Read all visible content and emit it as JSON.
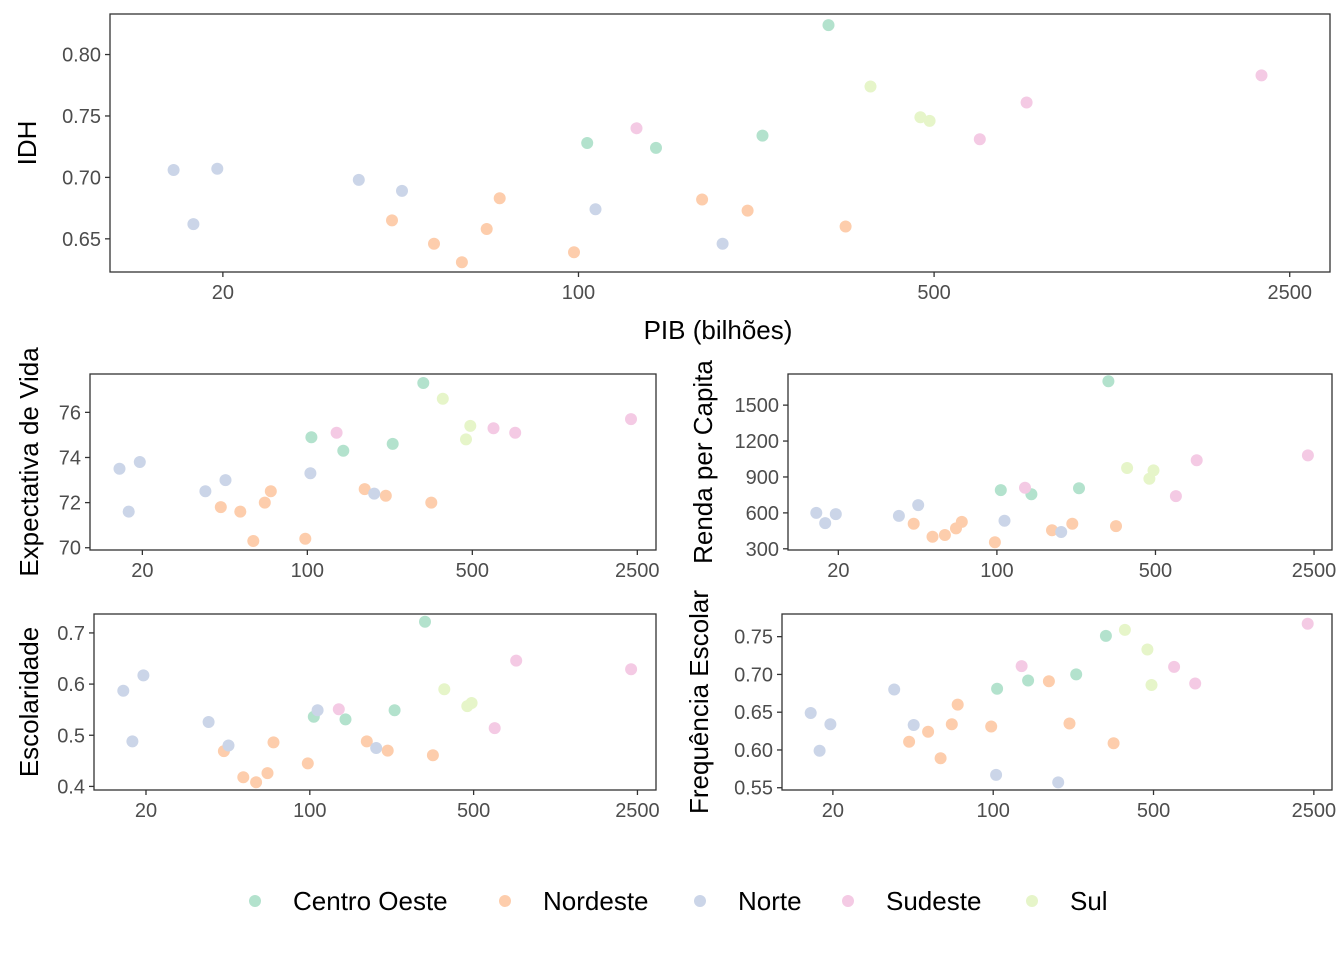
{
  "colors": {
    "Centro Oeste": "#b3e2cd",
    "Nordeste": "#fdcdac",
    "Norte": "#cbd5e8",
    "Sudeste": "#f4cae4",
    "Sul": "#e6f5c9"
  },
  "legend": {
    "entries": [
      "Centro Oeste",
      "Nordeste",
      "Norte",
      "Sudeste",
      "Sul"
    ]
  },
  "chart_data": [
    {
      "id": "idh",
      "type": "scatter",
      "title": "",
      "xlabel": "PIB (bilhões)",
      "ylabel": "IDH",
      "xscale": "log",
      "xlim": [
        12,
        3000
      ],
      "ylim": [
        0.623,
        0.833
      ],
      "xticks": [
        20,
        100,
        500,
        2500
      ],
      "xtick_labels": [
        "20",
        "100",
        "500",
        "2500"
      ],
      "yticks": [
        0.65,
        0.7,
        0.75,
        0.8
      ],
      "ytick_labels": [
        "0.65",
        "0.70",
        "0.75",
        "0.80"
      ],
      "grid": false,
      "points": [
        {
          "region": "Centro Oeste",
          "x": 104,
          "y": 0.728
        },
        {
          "region": "Centro Oeste",
          "x": 142,
          "y": 0.724
        },
        {
          "region": "Centro Oeste",
          "x": 230,
          "y": 0.734
        },
        {
          "region": "Centro Oeste",
          "x": 310,
          "y": 0.824
        },
        {
          "region": "Nordeste",
          "x": 43,
          "y": 0.665
        },
        {
          "region": "Nordeste",
          "x": 52,
          "y": 0.646
        },
        {
          "region": "Nordeste",
          "x": 59,
          "y": 0.631
        },
        {
          "region": "Nordeste",
          "x": 66,
          "y": 0.658
        },
        {
          "region": "Nordeste",
          "x": 70,
          "y": 0.683
        },
        {
          "region": "Nordeste",
          "x": 98,
          "y": 0.639
        },
        {
          "region": "Nordeste",
          "x": 175,
          "y": 0.682
        },
        {
          "region": "Nordeste",
          "x": 215,
          "y": 0.673
        },
        {
          "region": "Nordeste",
          "x": 335,
          "y": 0.66
        },
        {
          "region": "Norte",
          "x": 16,
          "y": 0.706
        },
        {
          "region": "Norte",
          "x": 17.5,
          "y": 0.662
        },
        {
          "region": "Norte",
          "x": 19.5,
          "y": 0.707
        },
        {
          "region": "Norte",
          "x": 37,
          "y": 0.698
        },
        {
          "region": "Norte",
          "x": 45,
          "y": 0.689
        },
        {
          "region": "Norte",
          "x": 108,
          "y": 0.674
        },
        {
          "region": "Norte",
          "x": 192,
          "y": 0.646
        },
        {
          "region": "Sudeste",
          "x": 130,
          "y": 0.74
        },
        {
          "region": "Sudeste",
          "x": 615,
          "y": 0.731
        },
        {
          "region": "Sudeste",
          "x": 760,
          "y": 0.761
        },
        {
          "region": "Sudeste",
          "x": 2200,
          "y": 0.783
        },
        {
          "region": "Sul",
          "x": 375,
          "y": 0.774
        },
        {
          "region": "Sul",
          "x": 470,
          "y": 0.749
        },
        {
          "region": "Sul",
          "x": 490,
          "y": 0.746
        }
      ]
    },
    {
      "id": "expectativa",
      "type": "scatter",
      "title": "",
      "xlabel": "",
      "ylabel": "Expectativa de Vida",
      "xscale": "log",
      "xlim": [
        12,
        3000
      ],
      "ylim": [
        69.9,
        77.7
      ],
      "xticks": [
        20,
        100,
        500,
        2500
      ],
      "xtick_labels": [
        "20",
        "100",
        "500",
        "2500"
      ],
      "yticks": [
        70,
        72,
        74,
        76
      ],
      "ytick_labels": [
        "70",
        "72",
        "74",
        "76"
      ],
      "grid": false,
      "points": [
        {
          "region": "Centro Oeste",
          "x": 104,
          "y": 74.9
        },
        {
          "region": "Centro Oeste",
          "x": 142,
          "y": 74.3
        },
        {
          "region": "Centro Oeste",
          "x": 230,
          "y": 74.6
        },
        {
          "region": "Centro Oeste",
          "x": 310,
          "y": 77.3
        },
        {
          "region": "Nordeste",
          "x": 43,
          "y": 71.8
        },
        {
          "region": "Nordeste",
          "x": 52,
          "y": 71.6
        },
        {
          "region": "Nordeste",
          "x": 59,
          "y": 70.3
        },
        {
          "region": "Nordeste",
          "x": 66,
          "y": 72.0
        },
        {
          "region": "Nordeste",
          "x": 70,
          "y": 72.5
        },
        {
          "region": "Nordeste",
          "x": 98,
          "y": 70.4
        },
        {
          "region": "Nordeste",
          "x": 175,
          "y": 72.6
        },
        {
          "region": "Nordeste",
          "x": 215,
          "y": 72.3
        },
        {
          "region": "Nordeste",
          "x": 335,
          "y": 72.0
        },
        {
          "region": "Norte",
          "x": 16,
          "y": 73.5
        },
        {
          "region": "Norte",
          "x": 17.5,
          "y": 71.6
        },
        {
          "region": "Norte",
          "x": 19.5,
          "y": 73.8
        },
        {
          "region": "Norte",
          "x": 37,
          "y": 72.5
        },
        {
          "region": "Norte",
          "x": 45,
          "y": 73.0
        },
        {
          "region": "Norte",
          "x": 103,
          "y": 73.3
        },
        {
          "region": "Norte",
          "x": 192,
          "y": 72.4
        },
        {
          "region": "Sudeste",
          "x": 133,
          "y": 75.1
        },
        {
          "region": "Sudeste",
          "x": 615,
          "y": 75.3
        },
        {
          "region": "Sudeste",
          "x": 760,
          "y": 75.1
        },
        {
          "region": "Sudeste",
          "x": 2350,
          "y": 75.7
        },
        {
          "region": "Sul",
          "x": 375,
          "y": 76.6
        },
        {
          "region": "Sul",
          "x": 470,
          "y": 74.8
        },
        {
          "region": "Sul",
          "x": 490,
          "y": 75.4
        }
      ]
    },
    {
      "id": "renda",
      "type": "scatter",
      "title": "",
      "xlabel": "",
      "ylabel": "Renda per Capita",
      "xscale": "log",
      "xlim": [
        12,
        3000
      ],
      "ylim": [
        290,
        1760
      ],
      "xticks": [
        20,
        100,
        500,
        2500
      ],
      "xtick_labels": [
        "20",
        "100",
        "500",
        "2500"
      ],
      "yticks": [
        300,
        600,
        900,
        1200,
        1500
      ],
      "ytick_labels": [
        "300",
        "600",
        "900",
        "1200",
        "1500"
      ],
      "grid": false,
      "points": [
        {
          "region": "Centro Oeste",
          "x": 104,
          "y": 790
        },
        {
          "region": "Centro Oeste",
          "x": 142,
          "y": 755
        },
        {
          "region": "Centro Oeste",
          "x": 230,
          "y": 805
        },
        {
          "region": "Centro Oeste",
          "x": 310,
          "y": 1700
        },
        {
          "region": "Nordeste",
          "x": 43,
          "y": 510
        },
        {
          "region": "Nordeste",
          "x": 52,
          "y": 400
        },
        {
          "region": "Nordeste",
          "x": 59,
          "y": 415
        },
        {
          "region": "Nordeste",
          "x": 66,
          "y": 470
        },
        {
          "region": "Nordeste",
          "x": 70,
          "y": 525
        },
        {
          "region": "Nordeste",
          "x": 98,
          "y": 355
        },
        {
          "region": "Nordeste",
          "x": 175,
          "y": 455
        },
        {
          "region": "Nordeste",
          "x": 215,
          "y": 510
        },
        {
          "region": "Nordeste",
          "x": 335,
          "y": 490
        },
        {
          "region": "Norte",
          "x": 16,
          "y": 600
        },
        {
          "region": "Norte",
          "x": 17.5,
          "y": 515
        },
        {
          "region": "Norte",
          "x": 19.5,
          "y": 590
        },
        {
          "region": "Norte",
          "x": 37,
          "y": 575
        },
        {
          "region": "Norte",
          "x": 45,
          "y": 665
        },
        {
          "region": "Norte",
          "x": 108,
          "y": 535
        },
        {
          "region": "Norte",
          "x": 192,
          "y": 440
        },
        {
          "region": "Sudeste",
          "x": 133,
          "y": 810
        },
        {
          "region": "Sudeste",
          "x": 615,
          "y": 740
        },
        {
          "region": "Sudeste",
          "x": 760,
          "y": 1040
        },
        {
          "region": "Sudeste",
          "x": 2350,
          "y": 1080
        },
        {
          "region": "Sul",
          "x": 375,
          "y": 975
        },
        {
          "region": "Sul",
          "x": 470,
          "y": 885
        },
        {
          "region": "Sul",
          "x": 490,
          "y": 955
        }
      ]
    },
    {
      "id": "escolaridade",
      "type": "scatter",
      "title": "",
      "xlabel": "",
      "ylabel": "Escolaridade",
      "xscale": "log",
      "xlim": [
        12,
        3000
      ],
      "ylim": [
        0.393,
        0.737
      ],
      "xticks": [
        20,
        100,
        500,
        2500
      ],
      "xtick_labels": [
        "20",
        "100",
        "500",
        "2500"
      ],
      "yticks": [
        0.4,
        0.5,
        0.6,
        0.7
      ],
      "ytick_labels": [
        "0.4",
        "0.5",
        "0.6",
        "0.7"
      ],
      "grid": false,
      "points": [
        {
          "region": "Centro Oeste",
          "x": 104,
          "y": 0.536
        },
        {
          "region": "Centro Oeste",
          "x": 142,
          "y": 0.531
        },
        {
          "region": "Centro Oeste",
          "x": 230,
          "y": 0.549
        },
        {
          "region": "Centro Oeste",
          "x": 310,
          "y": 0.722
        },
        {
          "region": "Nordeste",
          "x": 43,
          "y": 0.469
        },
        {
          "region": "Nordeste",
          "x": 52,
          "y": 0.418
        },
        {
          "region": "Nordeste",
          "x": 59,
          "y": 0.408
        },
        {
          "region": "Nordeste",
          "x": 66,
          "y": 0.426
        },
        {
          "region": "Nordeste",
          "x": 70,
          "y": 0.486
        },
        {
          "region": "Nordeste",
          "x": 98,
          "y": 0.445
        },
        {
          "region": "Nordeste",
          "x": 175,
          "y": 0.488
        },
        {
          "region": "Nordeste",
          "x": 215,
          "y": 0.47
        },
        {
          "region": "Nordeste",
          "x": 335,
          "y": 0.461
        },
        {
          "region": "Norte",
          "x": 16,
          "y": 0.587
        },
        {
          "region": "Norte",
          "x": 17.5,
          "y": 0.488
        },
        {
          "region": "Norte",
          "x": 19.5,
          "y": 0.617
        },
        {
          "region": "Norte",
          "x": 37,
          "y": 0.526
        },
        {
          "region": "Norte",
          "x": 45,
          "y": 0.48
        },
        {
          "region": "Norte",
          "x": 108,
          "y": 0.549
        },
        {
          "region": "Norte",
          "x": 192,
          "y": 0.475
        },
        {
          "region": "Sudeste",
          "x": 133,
          "y": 0.551
        },
        {
          "region": "Sudeste",
          "x": 615,
          "y": 0.514
        },
        {
          "region": "Sudeste",
          "x": 760,
          "y": 0.646
        },
        {
          "region": "Sudeste",
          "x": 2350,
          "y": 0.629
        },
        {
          "region": "Sul",
          "x": 375,
          "y": 0.59
        },
        {
          "region": "Sul",
          "x": 470,
          "y": 0.557
        },
        {
          "region": "Sul",
          "x": 490,
          "y": 0.563
        }
      ]
    },
    {
      "id": "frequencia",
      "type": "scatter",
      "title": "",
      "xlabel": "",
      "ylabel": "Frequência Escolar",
      "xscale": "log",
      "xlim": [
        12,
        3000
      ],
      "ylim": [
        0.547,
        0.78
      ],
      "xticks": [
        20,
        100,
        500,
        2500
      ],
      "xtick_labels": [
        "20",
        "100",
        "500",
        "2500"
      ],
      "yticks": [
        0.55,
        0.6,
        0.65,
        0.7,
        0.75
      ],
      "ytick_labels": [
        "0.55",
        "0.60",
        "0.65",
        "0.70",
        "0.75"
      ],
      "grid": false,
      "points": [
        {
          "region": "Centro Oeste",
          "x": 104,
          "y": 0.681
        },
        {
          "region": "Centro Oeste",
          "x": 142,
          "y": 0.692
        },
        {
          "region": "Centro Oeste",
          "x": 230,
          "y": 0.7
        },
        {
          "region": "Centro Oeste",
          "x": 310,
          "y": 0.751
        },
        {
          "region": "Nordeste",
          "x": 43,
          "y": 0.611
        },
        {
          "region": "Nordeste",
          "x": 52,
          "y": 0.624
        },
        {
          "region": "Nordeste",
          "x": 59,
          "y": 0.589
        },
        {
          "region": "Nordeste",
          "x": 66,
          "y": 0.634
        },
        {
          "region": "Nordeste",
          "x": 70,
          "y": 0.66
        },
        {
          "region": "Nordeste",
          "x": 98,
          "y": 0.631
        },
        {
          "region": "Nordeste",
          "x": 175,
          "y": 0.691
        },
        {
          "region": "Nordeste",
          "x": 215,
          "y": 0.635
        },
        {
          "region": "Nordeste",
          "x": 335,
          "y": 0.609
        },
        {
          "region": "Norte",
          "x": 16,
          "y": 0.649
        },
        {
          "region": "Norte",
          "x": 17.5,
          "y": 0.599
        },
        {
          "region": "Norte",
          "x": 19.5,
          "y": 0.634
        },
        {
          "region": "Norte",
          "x": 37,
          "y": 0.68
        },
        {
          "region": "Norte",
          "x": 45,
          "y": 0.633
        },
        {
          "region": "Norte",
          "x": 103,
          "y": 0.567
        },
        {
          "region": "Norte",
          "x": 192,
          "y": 0.557
        },
        {
          "region": "Sudeste",
          "x": 133,
          "y": 0.711
        },
        {
          "region": "Sudeste",
          "x": 615,
          "y": 0.71
        },
        {
          "region": "Sudeste",
          "x": 760,
          "y": 0.688
        },
        {
          "region": "Sudeste",
          "x": 2350,
          "y": 0.767
        },
        {
          "region": "Sul",
          "x": 375,
          "y": 0.759
        },
        {
          "region": "Sul",
          "x": 470,
          "y": 0.733
        },
        {
          "region": "Sul",
          "x": 490,
          "y": 0.686
        }
      ]
    }
  ]
}
